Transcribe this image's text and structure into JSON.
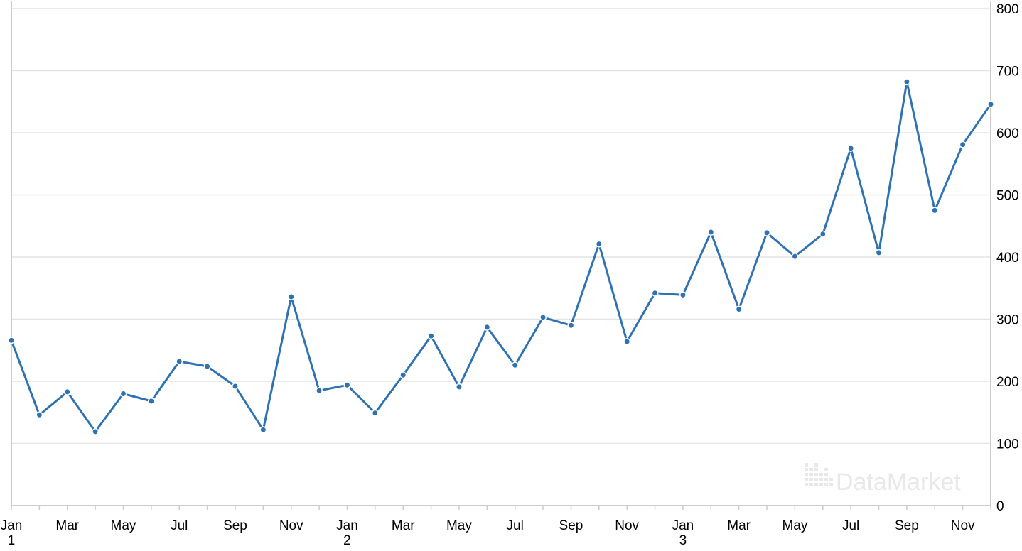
{
  "chart_data": {
    "type": "line",
    "title": "",
    "xlabel": "",
    "ylabel": "",
    "ylim": [
      0,
      800
    ],
    "y_ticks": [
      0,
      100,
      200,
      300,
      400,
      500,
      600,
      700,
      800
    ],
    "y_axis_side": "right",
    "grid": "horizontal",
    "legend": "none",
    "x_month_labels": [
      "Jan",
      "",
      "Mar",
      "",
      "May",
      "",
      "Jul",
      "",
      "Sep",
      "",
      "Nov",
      "",
      "Jan",
      "",
      "Mar",
      "",
      "May",
      "",
      "Jul",
      "",
      "Sep",
      "",
      "Nov",
      "",
      "Jan",
      "",
      "Mar",
      "",
      "May",
      "",
      "Jul",
      "",
      "Sep",
      "",
      "Nov",
      ""
    ],
    "x_year_labels": [
      {
        "index": 0,
        "label": "1"
      },
      {
        "index": 12,
        "label": "2"
      },
      {
        "index": 24,
        "label": "3"
      }
    ],
    "series": [
      {
        "values": [
          266,
          146,
          183,
          119,
          180,
          168,
          232,
          224,
          192,
          122,
          336,
          185,
          194,
          149,
          210,
          273,
          191,
          287,
          226,
          303,
          290,
          421,
          264,
          342,
          339,
          440,
          316,
          439,
          401,
          437,
          575,
          407,
          682,
          475,
          581,
          646
        ]
      }
    ],
    "colors": {
      "line": "#2f72b4",
      "grid": "#e3e3e3",
      "axis": "#cccccc",
      "text": "#000000",
      "watermark": "#e8e8e8"
    }
  },
  "watermark": {
    "text": "DataMarket"
  }
}
